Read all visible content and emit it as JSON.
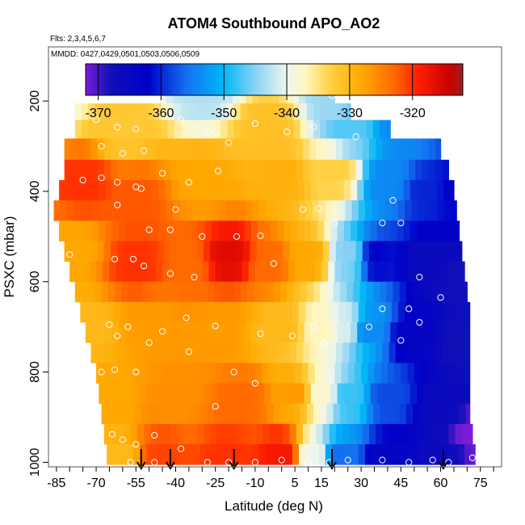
{
  "chart_data": {
    "type": "heatmap",
    "title": "ATOM4 Southbound APO_AO2",
    "subtitle_flights": "Flts: 2,3,4,5,6,7",
    "subtitle_dates": "MMDD: 0427,0429,0501,0503,0506,0509",
    "xlabel": "Latitude (deg N)",
    "ylabel": "PSXC (mbar)",
    "xlim": [
      -88,
      83
    ],
    "ylim": [
      1010,
      80
    ],
    "x_ticks": [
      -85,
      -70,
      -55,
      -40,
      -25,
      -10,
      5,
      15,
      30,
      45,
      60,
      75
    ],
    "x_minor_ticks": [
      -85,
      -80,
      -75,
      -70,
      -65,
      -60,
      -55,
      -50,
      -45,
      -40,
      -35,
      -30,
      -25,
      -20,
      -15,
      -10,
      -5,
      0,
      5,
      10,
      15,
      20,
      25,
      30,
      35,
      40,
      45,
      50,
      55,
      60,
      65,
      70,
      75,
      80
    ],
    "y_ticks": [
      200,
      400,
      600,
      800,
      1000
    ],
    "colorbar": {
      "ticks": [
        -370,
        -360,
        -350,
        -340,
        -330,
        -320
      ],
      "range": [
        -372,
        -312
      ],
      "stops": [
        {
          "v": -372,
          "c": "#7a1cd8"
        },
        {
          "v": -368,
          "c": "#1010b8"
        },
        {
          "v": -362,
          "c": "#0000c8"
        },
        {
          "v": -356,
          "c": "#1470f0"
        },
        {
          "v": -350,
          "c": "#00b8f8"
        },
        {
          "v": -345,
          "c": "#8ad2f4"
        },
        {
          "v": -340,
          "c": "#eef6ee"
        },
        {
          "v": -337,
          "c": "#fff6c0"
        },
        {
          "v": -333,
          "c": "#ffd040"
        },
        {
          "v": -328,
          "c": "#ffa800"
        },
        {
          "v": -323,
          "c": "#ff6a00"
        },
        {
          "v": -319,
          "c": "#ff1e00"
        },
        {
          "v": -314,
          "c": "#c80000"
        },
        {
          "v": -312,
          "c": "#9a2020"
        }
      ]
    },
    "pressure_bands": [
      {
        "p_top": 162,
        "p_bot": 205,
        "lat_min": -46,
        "lat_max": 20
      },
      {
        "p_top": 205,
        "p_bot": 242,
        "lat_min": -78,
        "lat_max": 26
      },
      {
        "p_top": 242,
        "p_bot": 283,
        "lat_min": -78,
        "lat_max": 41
      },
      {
        "p_top": 283,
        "p_bot": 330,
        "lat_min": -82,
        "lat_max": 60
      },
      {
        "p_top": 330,
        "p_bot": 375,
        "lat_min": -82,
        "lat_max": 63
      },
      {
        "p_top": 375,
        "p_bot": 420,
        "lat_min": -84,
        "lat_max": 65
      },
      {
        "p_top": 420,
        "p_bot": 465,
        "lat_min": -86,
        "lat_max": 66
      },
      {
        "p_top": 465,
        "p_bot": 510,
        "lat_min": -84,
        "lat_max": 67
      },
      {
        "p_top": 510,
        "p_bot": 555,
        "lat_min": -82,
        "lat_max": 68
      },
      {
        "p_top": 555,
        "p_bot": 600,
        "lat_min": -80,
        "lat_max": 69
      },
      {
        "p_top": 600,
        "p_bot": 645,
        "lat_min": -78,
        "lat_max": 70
      },
      {
        "p_top": 645,
        "p_bot": 690,
        "lat_min": -76,
        "lat_max": 71
      },
      {
        "p_top": 690,
        "p_bot": 735,
        "lat_min": -74,
        "lat_max": 71
      },
      {
        "p_top": 735,
        "p_bot": 780,
        "lat_min": -72,
        "lat_max": 71
      },
      {
        "p_top": 780,
        "p_bot": 825,
        "lat_min": -70,
        "lat_max": 71
      },
      {
        "p_top": 825,
        "p_bot": 870,
        "lat_min": -69,
        "lat_max": 71
      },
      {
        "p_top": 870,
        "p_bot": 915,
        "lat_min": -68,
        "lat_max": 71
      },
      {
        "p_top": 915,
        "p_bot": 960,
        "lat_min": -67,
        "lat_max": 72
      },
      {
        "p_top": 960,
        "p_bot": 1005,
        "lat_min": -66,
        "lat_max": 73
      }
    ],
    "field_anchors": [
      {
        "lat": -85,
        "p": 200,
        "v": -338
      },
      {
        "lat": -30,
        "p": 180,
        "v": -343
      },
      {
        "lat": 20,
        "p": 200,
        "v": -344
      },
      {
        "lat": -60,
        "p": 260,
        "v": -332
      },
      {
        "lat": -5,
        "p": 260,
        "v": -331
      },
      {
        "lat": 25,
        "p": 260,
        "v": -347
      },
      {
        "lat": 45,
        "p": 260,
        "v": -354
      },
      {
        "lat": -75,
        "p": 380,
        "v": -320
      },
      {
        "lat": -55,
        "p": 420,
        "v": -322
      },
      {
        "lat": -30,
        "p": 380,
        "v": -328
      },
      {
        "lat": 0,
        "p": 370,
        "v": -329
      },
      {
        "lat": 20,
        "p": 360,
        "v": -333
      },
      {
        "lat": 40,
        "p": 380,
        "v": -354
      },
      {
        "lat": 55,
        "p": 400,
        "v": -360
      },
      {
        "lat": 65,
        "p": 400,
        "v": -362
      },
      {
        "lat": -78,
        "p": 530,
        "v": -328
      },
      {
        "lat": -55,
        "p": 560,
        "v": -320
      },
      {
        "lat": -35,
        "p": 560,
        "v": -323
      },
      {
        "lat": -20,
        "p": 545,
        "v": -316
      },
      {
        "lat": -5,
        "p": 560,
        "v": -323
      },
      {
        "lat": 10,
        "p": 550,
        "v": -328
      },
      {
        "lat": 26,
        "p": 550,
        "v": -345
      },
      {
        "lat": 35,
        "p": 550,
        "v": -362
      },
      {
        "lat": 55,
        "p": 560,
        "v": -366
      },
      {
        "lat": 68,
        "p": 600,
        "v": -368
      },
      {
        "lat": -72,
        "p": 700,
        "v": -330
      },
      {
        "lat": -50,
        "p": 700,
        "v": -327
      },
      {
        "lat": -25,
        "p": 710,
        "v": -327
      },
      {
        "lat": 0,
        "p": 700,
        "v": -330
      },
      {
        "lat": 15,
        "p": 700,
        "v": -337
      },
      {
        "lat": 25,
        "p": 695,
        "v": -341
      },
      {
        "lat": 32,
        "p": 700,
        "v": -354
      },
      {
        "lat": 50,
        "p": 720,
        "v": -364
      },
      {
        "lat": 68,
        "p": 740,
        "v": -368
      },
      {
        "lat": -65,
        "p": 860,
        "v": -328
      },
      {
        "lat": -40,
        "p": 860,
        "v": -326
      },
      {
        "lat": -15,
        "p": 860,
        "v": -323
      },
      {
        "lat": 5,
        "p": 850,
        "v": -327
      },
      {
        "lat": 15,
        "p": 850,
        "v": -338
      },
      {
        "lat": 25,
        "p": 860,
        "v": -348
      },
      {
        "lat": 40,
        "p": 860,
        "v": -358
      },
      {
        "lat": 60,
        "p": 880,
        "v": -366
      },
      {
        "lat": 72,
        "p": 940,
        "v": -372
      },
      {
        "lat": -62,
        "p": 990,
        "v": -330
      },
      {
        "lat": -45,
        "p": 985,
        "v": -321
      },
      {
        "lat": -20,
        "p": 985,
        "v": -320
      },
      {
        "lat": 0,
        "p": 980,
        "v": -318
      },
      {
        "lat": 12,
        "p": 990,
        "v": -340
      },
      {
        "lat": 22,
        "p": 990,
        "v": -356
      },
      {
        "lat": 40,
        "p": 990,
        "v": -364
      },
      {
        "lat": 60,
        "p": 990,
        "v": -366
      }
    ],
    "sample_points": [
      [
        -80,
        241
      ],
      [
        -70,
        241
      ],
      [
        -62,
        258
      ],
      [
        -55,
        262
      ],
      [
        -48,
        188
      ],
      [
        -38,
        241
      ],
      [
        -25,
        268
      ],
      [
        -10,
        250
      ],
      [
        2,
        268
      ],
      [
        12,
        258
      ],
      [
        19,
        188
      ],
      [
        28,
        279
      ],
      [
        -68,
        300
      ],
      [
        -60,
        316
      ],
      [
        -52,
        310
      ],
      [
        -45,
        360
      ],
      [
        -35,
        380
      ],
      [
        -28,
        268
      ],
      [
        -20,
        292
      ],
      [
        -62,
        380
      ],
      [
        -55,
        390
      ],
      [
        -75,
        375
      ],
      [
        -68,
        370
      ],
      [
        -62,
        430
      ],
      [
        -53,
        394
      ],
      [
        -40,
        440
      ],
      [
        -24,
        355
      ],
      [
        8,
        440
      ],
      [
        14,
        438
      ],
      [
        20,
        470
      ],
      [
        38,
        470
      ],
      [
        45,
        470
      ],
      [
        -80,
        540
      ],
      [
        -63,
        550
      ],
      [
        -56,
        550
      ],
      [
        -52,
        565
      ],
      [
        -42,
        582
      ],
      [
        -33,
        590
      ],
      [
        -17,
        500
      ],
      [
        -3,
        560
      ],
      [
        -50,
        485
      ],
      [
        -42,
        485
      ],
      [
        -30,
        500
      ],
      [
        -8,
        498
      ],
      [
        42,
        420
      ],
      [
        52,
        590
      ],
      [
        60,
        635
      ],
      [
        72,
        640
      ],
      [
        -65,
        695
      ],
      [
        -62,
        720
      ],
      [
        -58,
        700
      ],
      [
        -50,
        735
      ],
      [
        -45,
        710
      ],
      [
        -36,
        680
      ],
      [
        -25,
        698
      ],
      [
        -8,
        715
      ],
      [
        4,
        720
      ],
      [
        12,
        700
      ],
      [
        16,
        735
      ],
      [
        33,
        700
      ],
      [
        38,
        660
      ],
      [
        48,
        660
      ],
      [
        52,
        690
      ],
      [
        45,
        730
      ],
      [
        -68,
        800
      ],
      [
        -63,
        795
      ],
      [
        -55,
        800
      ],
      [
        -35,
        755
      ],
      [
        -18,
        800
      ],
      [
        -10,
        825
      ],
      [
        -64,
        938
      ],
      [
        -60,
        950
      ],
      [
        -55,
        960
      ],
      [
        -48,
        940
      ],
      [
        -38,
        970
      ],
      [
        -28,
        1000
      ],
      [
        -20,
        1000
      ],
      [
        -10,
        1000
      ],
      [
        0,
        995
      ],
      [
        10,
        1000
      ],
      [
        18,
        1000
      ],
      [
        25,
        995
      ],
      [
        38,
        995
      ],
      [
        48,
        1000
      ],
      [
        57,
        995
      ],
      [
        63,
        1000
      ],
      [
        72,
        990
      ],
      [
        -25,
        876
      ],
      [
        -57,
        1000
      ],
      [
        -48,
        1000
      ]
    ],
    "flight_arrows": [
      -53,
      -42,
      -18,
      19,
      61
    ]
  }
}
